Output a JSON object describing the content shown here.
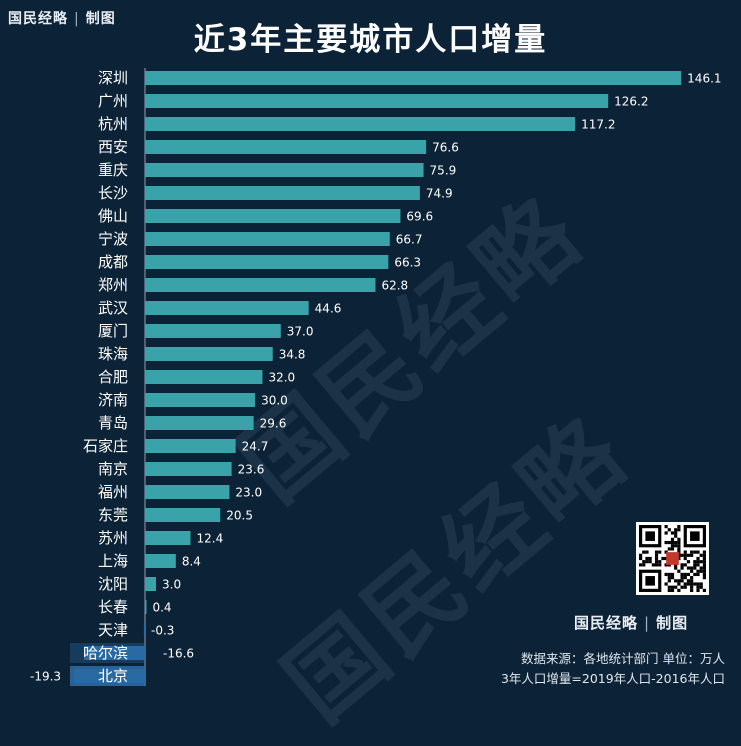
{
  "brand": {
    "name": "国民经略",
    "separator": "|",
    "tag": "制图"
  },
  "watermark_text": "国民经略",
  "footnote": {
    "source": "数据来源：各地统计部门 单位：万人",
    "formula": "3年人口增量=2019年人口-2016年人口"
  },
  "colors": {
    "background": "#0c2236",
    "bar_positive": "#3aa3aa",
    "bar_negative": "#2a6aa3",
    "axis": "#8fa3b3",
    "text": "#ffffff"
  },
  "chart_data": {
    "type": "bar",
    "orientation": "horizontal",
    "title": "近3年主要城市人口增量",
    "xlabel": "",
    "ylabel": "",
    "xlim": [
      -20,
      150
    ],
    "grid": false,
    "categories": [
      "深圳",
      "广州",
      "杭州",
      "西安",
      "重庆",
      "长沙",
      "佛山",
      "宁波",
      "成都",
      "郑州",
      "武汉",
      "厦门",
      "珠海",
      "合肥",
      "济南",
      "青岛",
      "石家庄",
      "南京",
      "福州",
      "东莞",
      "苏州",
      "上海",
      "沈阳",
      "长春",
      "天津",
      "哈尔滨",
      "北京"
    ],
    "values": [
      146.1,
      126.2,
      117.2,
      76.6,
      75.9,
      74.9,
      69.6,
      66.7,
      66.3,
      62.8,
      44.6,
      37.0,
      34.8,
      32.0,
      30.0,
      29.6,
      24.7,
      23.6,
      23.0,
      20.5,
      12.4,
      8.4,
      3.0,
      0.4,
      -0.3,
      -16.6,
      -19.3
    ],
    "data_labels": [
      "146.1",
      "126.2",
      "117.2",
      "76.6",
      "75.9",
      "74.9",
      "69.6",
      "66.7",
      "66.3",
      "62.8",
      "44.6",
      "37.0",
      "34.8",
      "32.0",
      "30.0",
      "29.6",
      "24.7",
      "23.6",
      "23.0",
      "20.5",
      "12.4",
      "8.4",
      "3.0",
      "0.4",
      "-0.3",
      "-16.6",
      "-19.3"
    ]
  }
}
